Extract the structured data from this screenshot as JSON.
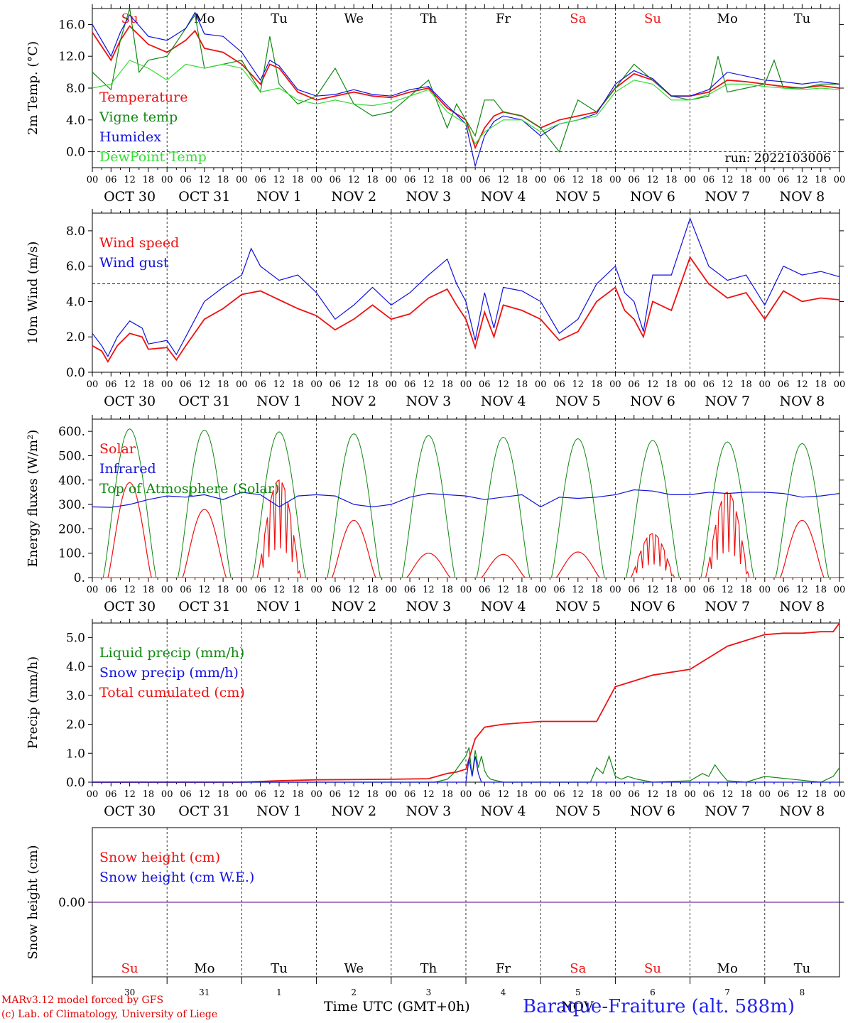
{
  "meta": {
    "run_label": "run: 2022103006",
    "footer_line1": "MARv3.12 model forced by GFS",
    "footer_line2": "(c) Lab. of Climatology, University of Liege",
    "xaxis_caption": "Time UTC (GMT+0h)",
    "month_caption": "NOV",
    "station": "Baraque-Fraiture (alt. 588m)"
  },
  "time_axis": {
    "hour_ticks": [
      "00",
      "06",
      "12",
      "18"
    ],
    "end_tick": "00",
    "day_labels": [
      "OCT 30",
      "OCT 31",
      "NOV  1",
      "NOV  2",
      "NOV  3",
      "NOV  4",
      "NOV  5",
      "NOV  6",
      "NOV  7",
      "NOV  8"
    ],
    "weekdays": [
      "Su",
      "Mo",
      "Tu",
      "We",
      "Th",
      "Fr",
      "Sa",
      "Su",
      "Mo",
      "Tu"
    ],
    "weekend": [
      true,
      false,
      false,
      false,
      false,
      false,
      true,
      true,
      false,
      false
    ],
    "day_numbers": [
      "30",
      "31",
      "1",
      "2",
      "3",
      "4",
      "5",
      "6",
      "7",
      "8"
    ]
  },
  "colors": {
    "red": "#ee1111",
    "green": "#118811",
    "blue": "#1111dd",
    "lightgreen": "#33dd33",
    "purple": "#7733aa",
    "weekend": "#ee1111"
  },
  "chart_data": [
    {
      "type": "line",
      "ylabel": "2m Temp. (°C)",
      "ylim": [
        -2.0,
        18.0
      ],
      "yticks": [
        "0.0",
        "4.0",
        "8.0",
        "12.0",
        "16.0"
      ],
      "ytick_values": [
        0,
        4,
        8,
        12,
        16
      ],
      "ref_line": 0.0,
      "x_unit": "hours since Oct 30 00 UTC",
      "series": [
        {
          "name": "Temperature",
          "color": "red",
          "x": [
            0,
            6,
            9,
            12,
            18,
            24,
            30,
            33,
            36,
            42,
            48,
            54,
            57,
            60,
            66,
            72,
            78,
            84,
            90,
            96,
            102,
            108,
            114,
            120,
            123,
            126,
            129,
            132,
            138,
            144,
            150,
            156,
            162,
            168,
            174,
            180,
            186,
            192,
            198,
            204,
            210,
            216,
            222,
            228,
            234,
            240
          ],
          "y": [
            15.0,
            11.5,
            14.0,
            15.8,
            13.5,
            12.5,
            14.0,
            15.2,
            13.0,
            12.5,
            11.0,
            8.5,
            11.0,
            10.5,
            7.5,
            6.5,
            7.0,
            7.5,
            7.0,
            6.8,
            7.5,
            8.0,
            5.5,
            4.0,
            0.5,
            3.0,
            4.5,
            5.0,
            4.5,
            3.0,
            4.0,
            4.5,
            5.0,
            8.0,
            9.8,
            9.0,
            7.0,
            7.0,
            7.5,
            9.0,
            8.8,
            8.5,
            8.2,
            8.0,
            8.3,
            8.0
          ]
        },
        {
          "name": "Vigne temp",
          "color": "green",
          "x": [
            0,
            6,
            9,
            12,
            15,
            18,
            24,
            30,
            33,
            36,
            42,
            48,
            54,
            57,
            60,
            66,
            72,
            78,
            84,
            90,
            96,
            102,
            108,
            114,
            117,
            120,
            123,
            126,
            129,
            132,
            138,
            144,
            150,
            153,
            156,
            162,
            168,
            174,
            180,
            186,
            192,
            198,
            201,
            204,
            210,
            216,
            219,
            222,
            228,
            234,
            240
          ],
          "y": [
            10.0,
            7.8,
            14.0,
            18.0,
            10.0,
            11.5,
            12.0,
            15.5,
            17.2,
            10.5,
            11.0,
            11.5,
            7.5,
            14.5,
            8.5,
            6.0,
            7.0,
            10.5,
            6.0,
            4.5,
            5.0,
            7.0,
            9.0,
            3.0,
            6.0,
            4.0,
            2.0,
            6.5,
            6.5,
            5.0,
            4.5,
            3.0,
            0.0,
            3.5,
            6.5,
            5.0,
            8.0,
            11.0,
            9.0,
            7.0,
            6.5,
            7.0,
            12.0,
            7.5,
            8.0,
            8.5,
            11.5,
            8.0,
            8.0,
            8.5,
            8.5
          ]
        },
        {
          "name": "Humidex",
          "color": "blue",
          "x": [
            0,
            6,
            9,
            12,
            18,
            24,
            30,
            33,
            36,
            42,
            48,
            54,
            57,
            60,
            66,
            72,
            78,
            84,
            90,
            96,
            102,
            108,
            114,
            120,
            123,
            126,
            129,
            132,
            138,
            144,
            150,
            156,
            162,
            168,
            174,
            180,
            186,
            192,
            198,
            204,
            210,
            216,
            222,
            228,
            234,
            240
          ],
          "y": [
            16.0,
            12.0,
            15.0,
            17.2,
            14.5,
            14.0,
            15.5,
            17.5,
            14.8,
            14.5,
            12.5,
            9.0,
            11.5,
            10.8,
            7.8,
            7.0,
            7.2,
            7.8,
            7.2,
            7.0,
            7.8,
            8.2,
            5.8,
            3.5,
            -1.8,
            2.0,
            3.8,
            4.5,
            4.0,
            2.0,
            3.5,
            4.0,
            4.8,
            8.5,
            10.2,
            9.2,
            7.0,
            7.0,
            7.8,
            10.0,
            9.5,
            9.0,
            8.8,
            8.5,
            8.8,
            8.5
          ]
        },
        {
          "name": "DewPoint Temp",
          "color": "lightgreen",
          "x": [
            0,
            6,
            12,
            18,
            24,
            30,
            36,
            42,
            48,
            54,
            60,
            66,
            72,
            78,
            84,
            90,
            96,
            102,
            108,
            114,
            120,
            123,
            126,
            132,
            138,
            144,
            150,
            156,
            162,
            168,
            174,
            180,
            186,
            192,
            198,
            204,
            210,
            216,
            222,
            228,
            234,
            240
          ],
          "y": [
            8.0,
            8.5,
            11.5,
            10.5,
            9.0,
            11.0,
            10.5,
            11.0,
            10.5,
            7.5,
            8.0,
            6.5,
            6.0,
            6.5,
            6.0,
            5.8,
            6.2,
            7.0,
            7.8,
            5.0,
            3.5,
            1.0,
            2.5,
            4.0,
            4.0,
            2.5,
            3.5,
            4.0,
            4.5,
            7.5,
            9.0,
            8.5,
            6.5,
            6.5,
            7.2,
            8.5,
            8.5,
            8.2,
            8.0,
            7.8,
            8.0,
            7.8
          ]
        }
      ],
      "legend": [
        "Temperature",
        "Vigne temp",
        "Humidex",
        "DewPoint Temp"
      ],
      "legend_colors": [
        "red",
        "green",
        "blue",
        "lightgreen"
      ]
    },
    {
      "type": "line",
      "ylabel": "10m Wind (m/s)",
      "ylim": [
        0.0,
        9.0
      ],
      "yticks": [
        "0.0",
        "2.0",
        "4.0",
        "6.0",
        "8.0"
      ],
      "ytick_values": [
        0,
        2,
        4,
        6,
        8
      ],
      "ref_line": 5.0,
      "series": [
        {
          "name": "Wind speed",
          "color": "red",
          "x": [
            0,
            3,
            5,
            8,
            12,
            16,
            18,
            24,
            27,
            30,
            36,
            42,
            48,
            54,
            60,
            66,
            72,
            78,
            84,
            90,
            96,
            102,
            108,
            114,
            117,
            120,
            123,
            126,
            129,
            132,
            138,
            144,
            150,
            156,
            162,
            168,
            171,
            174,
            177,
            180,
            186,
            192,
            198,
            204,
            210,
            216,
            222,
            228,
            234,
            240
          ],
          "y": [
            1.5,
            1.2,
            0.6,
            1.5,
            2.2,
            2.0,
            1.3,
            1.4,
            0.7,
            1.5,
            3.0,
            3.6,
            4.4,
            4.6,
            4.1,
            3.6,
            3.2,
            2.4,
            3.0,
            3.8,
            3.0,
            3.3,
            4.2,
            4.7,
            3.8,
            3.0,
            1.4,
            3.4,
            2.0,
            3.8,
            3.5,
            3.0,
            1.8,
            2.3,
            4.0,
            4.8,
            3.5,
            3.0,
            2.0,
            4.0,
            3.5,
            6.5,
            5.0,
            4.2,
            4.5,
            3.0,
            4.6,
            4.0,
            4.2,
            4.1
          ]
        },
        {
          "name": "Wind gust",
          "color": "blue",
          "x": [
            0,
            3,
            5,
            8,
            12,
            16,
            18,
            24,
            27,
            30,
            36,
            42,
            48,
            51,
            54,
            60,
            66,
            72,
            78,
            84,
            90,
            96,
            102,
            108,
            114,
            117,
            120,
            123,
            126,
            129,
            132,
            138,
            144,
            150,
            156,
            162,
            168,
            171,
            174,
            177,
            180,
            186,
            192,
            198,
            204,
            210,
            216,
            222,
            228,
            234,
            240
          ],
          "y": [
            2.2,
            1.5,
            0.9,
            2.0,
            2.9,
            2.5,
            1.6,
            1.8,
            1.0,
            2.0,
            4.0,
            4.8,
            5.5,
            7.0,
            6.0,
            5.2,
            5.5,
            4.5,
            3.0,
            3.8,
            4.8,
            3.8,
            4.5,
            5.5,
            6.4,
            5.0,
            4.0,
            1.8,
            4.5,
            2.5,
            4.8,
            4.6,
            4.0,
            2.2,
            3.0,
            5.0,
            6.0,
            4.5,
            4.0,
            2.3,
            5.5,
            5.5,
            8.7,
            6.0,
            5.2,
            5.5,
            3.8,
            6.0,
            5.5,
            5.7,
            5.4
          ]
        }
      ],
      "legend": [
        "Wind speed",
        "Wind gust"
      ],
      "legend_colors": [
        "red",
        "blue"
      ]
    },
    {
      "type": "line",
      "ylabel": "Energy fluxes (W/m²)",
      "ylim": [
        0,
        650
      ],
      "yticks": [
        "0.",
        "100.",
        "200.",
        "300.",
        "400.",
        "500.",
        "600."
      ],
      "ytick_values": [
        0,
        100,
        200,
        300,
        400,
        500,
        600
      ],
      "ref_line": null,
      "solar_peaks_W_m2": [
        390,
        280,
        400,
        235,
        100,
        95,
        105,
        180,
        350,
        235
      ],
      "toa_peaks_W_m2": [
        610,
        605,
        598,
        590,
        583,
        576,
        570,
        563,
        557,
        550
      ],
      "series": [
        {
          "name": "Infrared",
          "color": "blue",
          "x": [
            0,
            6,
            12,
            18,
            24,
            30,
            36,
            42,
            48,
            54,
            60,
            66,
            72,
            78,
            84,
            90,
            96,
            102,
            108,
            114,
            120,
            126,
            132,
            138,
            144,
            150,
            156,
            162,
            168,
            174,
            180,
            186,
            192,
            198,
            204,
            210,
            216,
            222,
            228,
            234,
            240
          ],
          "y": [
            290,
            288,
            300,
            320,
            335,
            330,
            340,
            320,
            350,
            340,
            290,
            335,
            340,
            335,
            300,
            290,
            300,
            330,
            345,
            340,
            335,
            320,
            330,
            340,
            290,
            330,
            325,
            330,
            340,
            360,
            355,
            340,
            340,
            350,
            345,
            350,
            350,
            345,
            330,
            335,
            345
          ]
        }
      ],
      "legend": [
        "Solar",
        "Infrared",
        "Top of Atmosphere (Solar)"
      ],
      "legend_colors": [
        "red",
        "blue",
        "green"
      ]
    },
    {
      "type": "line",
      "ylabel": "Precip (mm/h)",
      "ylim": [
        0.0,
        5.5
      ],
      "yticks": [
        "0.0",
        "1.0",
        "2.0",
        "3.0",
        "4.0",
        "5.0"
      ],
      "ytick_values": [
        0,
        1,
        2,
        3,
        4,
        5
      ],
      "ref_line": null,
      "series": [
        {
          "name": "Total cumulated (cm)",
          "color": "red",
          "x": [
            0,
            48,
            60,
            72,
            96,
            108,
            114,
            117,
            120,
            123,
            126,
            132,
            144,
            162,
            168,
            174,
            180,
            192,
            198,
            204,
            216,
            222,
            228,
            234,
            238,
            240
          ],
          "y": [
            0,
            0,
            0.05,
            0.08,
            0.1,
            0.12,
            0.3,
            0.35,
            0.45,
            1.5,
            1.9,
            2.0,
            2.1,
            2.1,
            3.3,
            3.5,
            3.7,
            3.9,
            4.3,
            4.7,
            5.1,
            5.15,
            5.15,
            5.2,
            5.2,
            5.5
          ]
        },
        {
          "name": "Liquid precip (mm/h)",
          "color": "green",
          "x": [
            0,
            110,
            114,
            116,
            118,
            120,
            121,
            122,
            123,
            124,
            125,
            126,
            127,
            128,
            130,
            132,
            144,
            160,
            162,
            164,
            166,
            168,
            170,
            172,
            175,
            180,
            192,
            196,
            198,
            200,
            202,
            204,
            210,
            216,
            234,
            238,
            240
          ],
          "y": [
            0,
            0,
            0.1,
            0.3,
            0.6,
            0.9,
            1.2,
            0.2,
            1.1,
            0.5,
            0.9,
            0.4,
            0.2,
            0.1,
            0.05,
            0,
            0,
            0,
            0.5,
            0.3,
            0.9,
            0.2,
            0.1,
            0.2,
            0.1,
            0,
            0.05,
            0.3,
            0.2,
            0.6,
            0.3,
            0.05,
            0,
            0.2,
            0,
            0.2,
            0.5
          ]
        },
        {
          "name": "Snow precip (mm/h)",
          "color": "blue",
          "x": [
            0,
            120,
            121,
            122,
            123,
            124,
            125,
            240
          ],
          "y": [
            0,
            0,
            0.8,
            0.2,
            0.9,
            0.3,
            0,
            0
          ]
        }
      ],
      "legend": [
        "Liquid precip (mm/h)",
        "Snow precip (mm/h)",
        "Total cumulated (cm)"
      ],
      "legend_colors": [
        "green",
        "blue",
        "red"
      ]
    },
    {
      "type": "line",
      "ylabel": "Snow height (cm)",
      "ylim": [
        -1,
        1
      ],
      "yticks": [
        "0.00"
      ],
      "ytick_values": [
        0
      ],
      "ref_line": null,
      "series": [
        {
          "name": "Snow height (cm)",
          "color": "purple",
          "x": [
            0,
            240
          ],
          "y": [
            0,
            0
          ]
        }
      ],
      "legend": [
        "Snow height (cm)",
        "Snow height (cm W.E.)"
      ],
      "legend_colors": [
        "red",
        "blue"
      ]
    }
  ]
}
